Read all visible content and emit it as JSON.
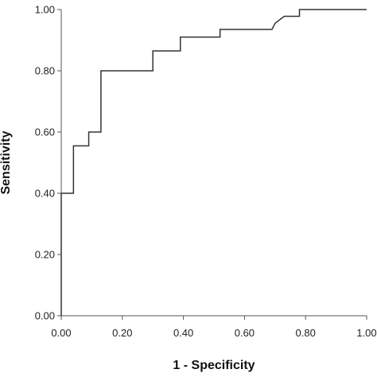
{
  "chart_data": {
    "type": "line",
    "xlabel": "1 - Specificity",
    "ylabel": "Sensitivity",
    "xlim": [
      0,
      1
    ],
    "ylim": [
      0,
      1
    ],
    "grid": false,
    "x_ticks": [
      "0.00",
      "0.20",
      "0.40",
      "0.60",
      "0.80",
      "1.00"
    ],
    "y_ticks": [
      "0.00",
      "0.20",
      "0.40",
      "0.60",
      "0.80",
      "1.00"
    ],
    "series": [
      {
        "x": [
          0,
          0,
          0.04,
          0.04,
          0.09,
          0.09,
          0.13,
          0.13,
          0.3,
          0.3,
          0.39,
          0.39,
          0.52,
          0.52,
          0.69,
          0.7,
          0.73,
          0.78,
          0.78,
          1.0
        ],
        "y": [
          0,
          0.4,
          0.4,
          0.555,
          0.555,
          0.6,
          0.6,
          0.8,
          0.8,
          0.865,
          0.865,
          0.91,
          0.91,
          0.935,
          0.935,
          0.955,
          0.978,
          0.978,
          1.0,
          1.0
        ],
        "color": "#333333"
      }
    ]
  }
}
